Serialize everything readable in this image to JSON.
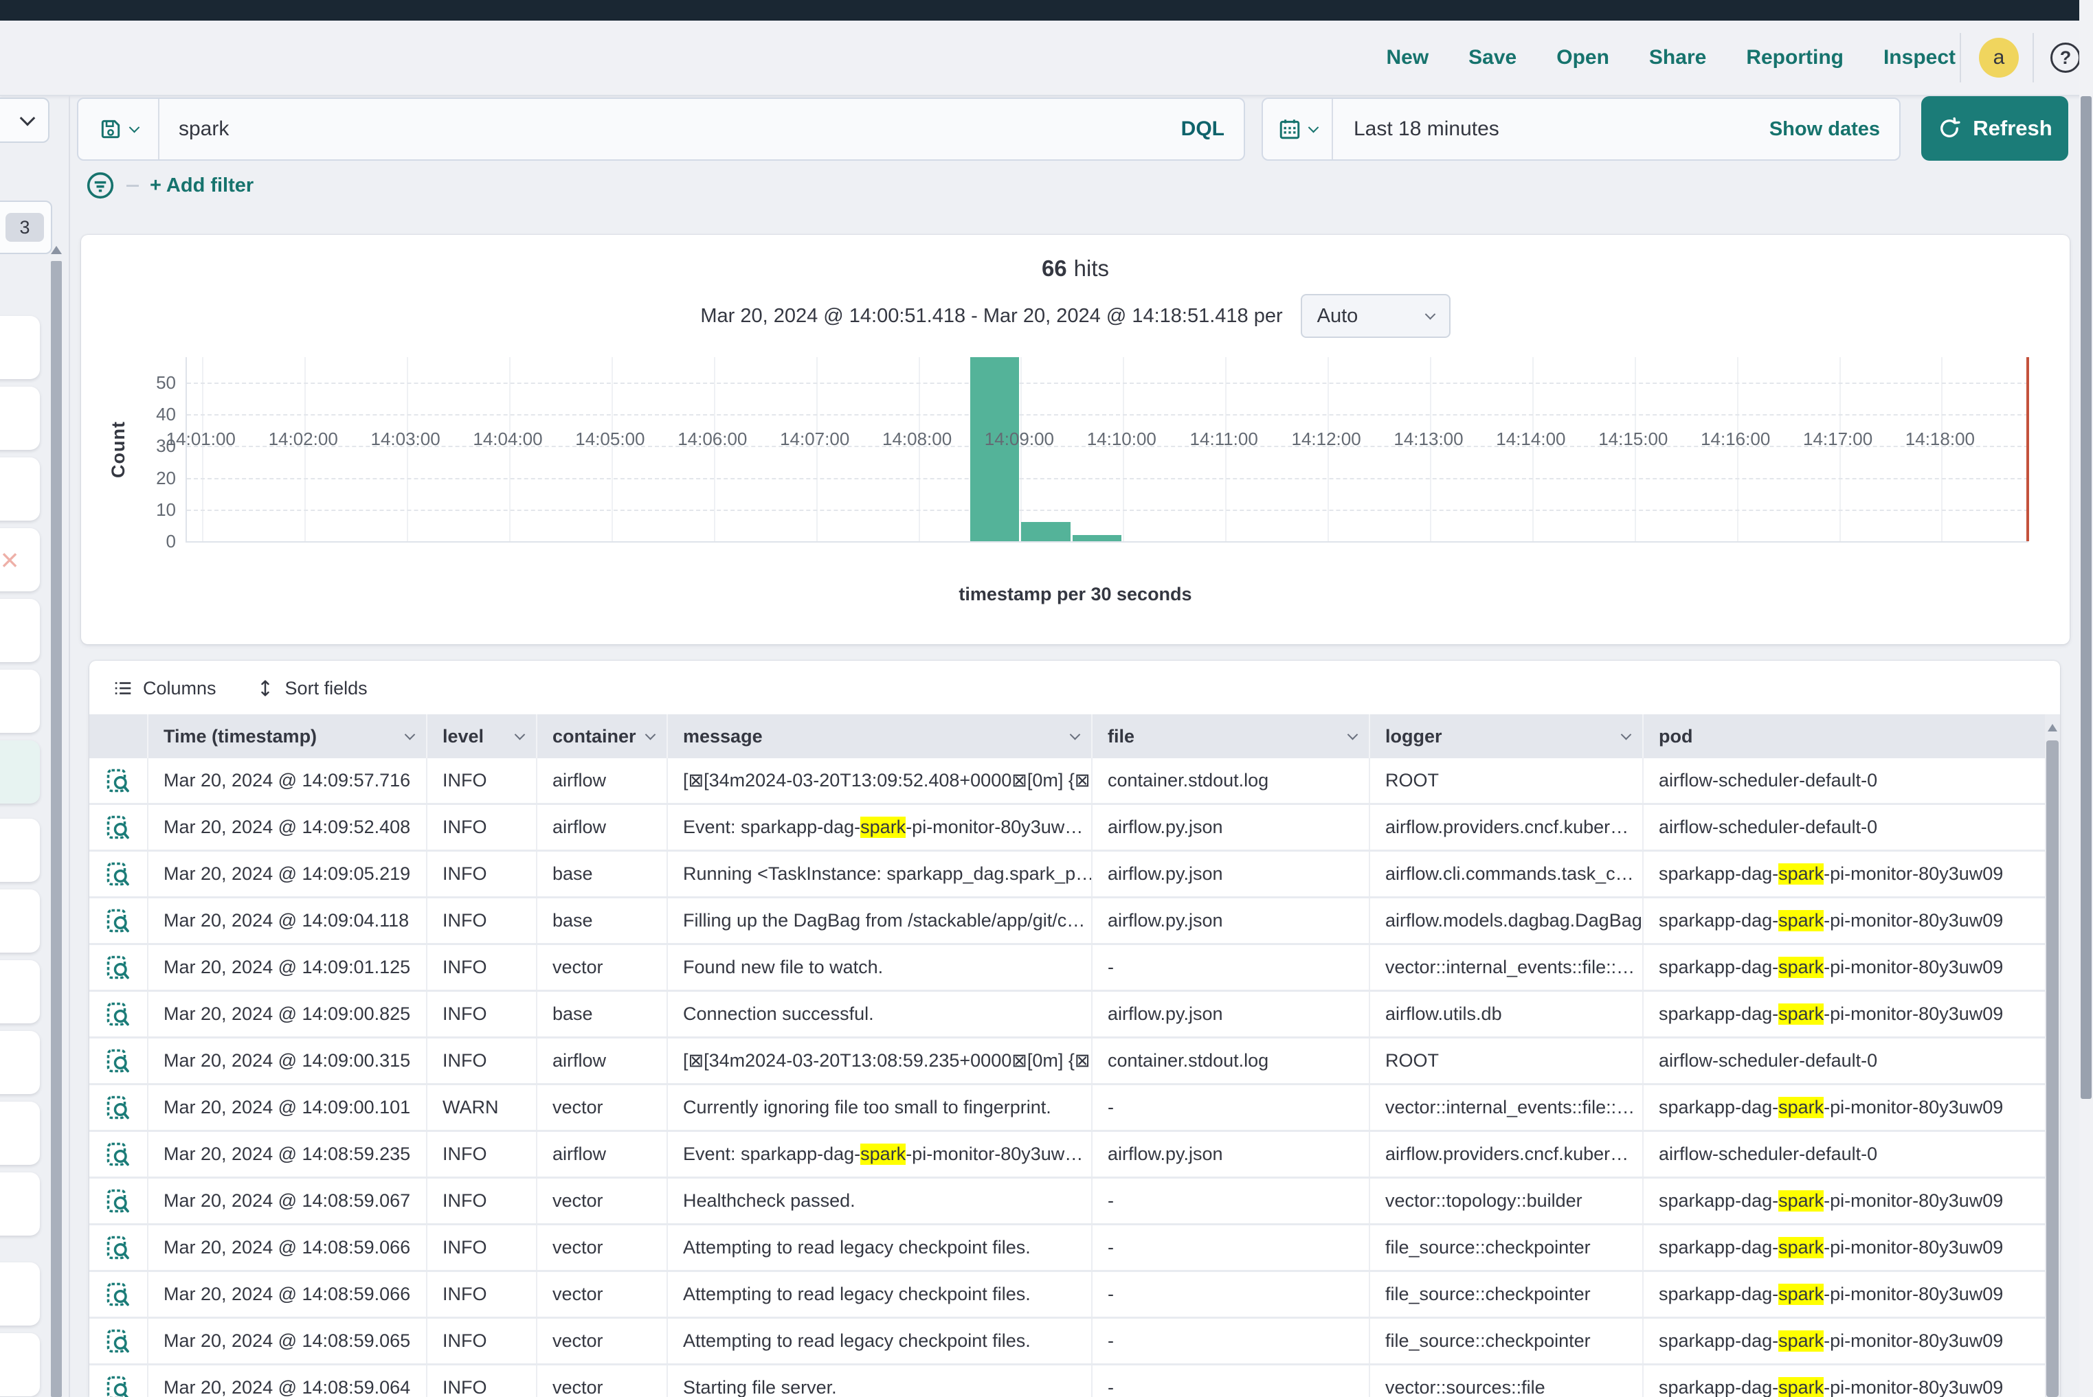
{
  "topnav": {
    "items": [
      {
        "key": "new",
        "label": "New"
      },
      {
        "key": "save",
        "label": "Save"
      },
      {
        "key": "open",
        "label": "Open"
      },
      {
        "key": "share",
        "label": "Share"
      },
      {
        "key": "reporting",
        "label": "Reporting"
      },
      {
        "key": "inspect",
        "label": "Inspect"
      }
    ],
    "avatar_initial": "a",
    "help_label": "?"
  },
  "querybar": {
    "query": "spark",
    "language_button": "DQL"
  },
  "timepicker": {
    "value": "Last 18 minutes",
    "show_dates_label": "Show dates",
    "refresh_label": "Refresh"
  },
  "filterbar": {
    "add_filter_label": "+ Add filter"
  },
  "sidebar": {
    "collapsed_badge": "3"
  },
  "chart": {
    "hits_count": "66",
    "hits_label": "hits",
    "range_text": "Mar 20, 2024 @ 14:00:51.418 - Mar 20, 2024 @ 14:18:51.418 per",
    "interval_value": "Auto",
    "ylabel": "Count",
    "xlabel": "timestamp per 30 seconds"
  },
  "chart_data": {
    "type": "bar",
    "title": "66 hits",
    "xlabel": "timestamp per 30 seconds",
    "ylabel": "Count",
    "interval": "30 seconds",
    "x_domain": [
      "14:00:51",
      "14:18:51"
    ],
    "x_ticks": [
      "14:01:00",
      "14:02:00",
      "14:03:00",
      "14:04:00",
      "14:05:00",
      "14:06:00",
      "14:07:00",
      "14:08:00",
      "14:09:00",
      "14:10:00",
      "14:11:00",
      "14:12:00",
      "14:13:00",
      "14:14:00",
      "14:15:00",
      "14:16:00",
      "14:17:00",
      "14:18:00"
    ],
    "y_ticks": [
      0,
      10,
      20,
      30,
      40,
      50
    ],
    "ylim": [
      0,
      58
    ],
    "grid": true,
    "bar_color": "#54b399",
    "bars": [
      {
        "x_start": "14:08:30",
        "x_end": "14:09:00",
        "count": 58
      },
      {
        "x_start": "14:09:00",
        "x_end": "14:09:30",
        "count": 6
      },
      {
        "x_start": "14:09:30",
        "x_end": "14:10:00",
        "count": 2
      }
    ],
    "current_time_marker": {
      "x": "14:18:51",
      "color": "#c4523c"
    }
  },
  "table": {
    "columns_button": "Columns",
    "sort_button": "Sort fields",
    "headers": [
      {
        "label": "Time (timestamp)",
        "sortable": true
      },
      {
        "label": "level",
        "sortable": true
      },
      {
        "label": "container",
        "sortable": true
      },
      {
        "label": "message",
        "sortable": true
      },
      {
        "label": "file",
        "sortable": true
      },
      {
        "label": "logger",
        "sortable": true
      },
      {
        "label": "pod",
        "sortable": false
      }
    ],
    "highlight_term": "spark",
    "rows": [
      {
        "time": "Mar 20, 2024 @ 14:09:57.716",
        "level": "INFO",
        "container": "airflow",
        "message": "[⊠[34m2024-03-20T13:09:52.408+0000⊠[0m] {⊠…",
        "file": "container.stdout.log",
        "logger": "ROOT",
        "pod": "airflow-scheduler-default-0"
      },
      {
        "time": "Mar 20, 2024 @ 14:09:52.408",
        "level": "INFO",
        "container": "airflow",
        "message": "Event: sparkapp-dag-[[spark]]-pi-monitor-80y3uw…",
        "file": "airflow.py.json",
        "logger": "airflow.providers.cncf.kuber…",
        "pod": "airflow-scheduler-default-0"
      },
      {
        "time": "Mar 20, 2024 @ 14:09:05.219",
        "level": "INFO",
        "container": "base",
        "message": "Running <TaskInstance: sparkapp_dag.spark_p…",
        "file": "airflow.py.json",
        "logger": "airflow.cli.commands.task_c…",
        "pod": "sparkapp-dag-[[spark]]-pi-monitor-80y3uw09"
      },
      {
        "time": "Mar 20, 2024 @ 14:09:04.118",
        "level": "INFO",
        "container": "base",
        "message": "Filling up the DagBag from /stackable/app/git/c…",
        "file": "airflow.py.json",
        "logger": "airflow.models.dagbag.DagBag",
        "pod": "sparkapp-dag-[[spark]]-pi-monitor-80y3uw09"
      },
      {
        "time": "Mar 20, 2024 @ 14:09:01.125",
        "level": "INFO",
        "container": "vector",
        "message": "Found new file to watch.",
        "file": "-",
        "logger": "vector::internal_events::file::…",
        "pod": "sparkapp-dag-[[spark]]-pi-monitor-80y3uw09"
      },
      {
        "time": "Mar 20, 2024 @ 14:09:00.825",
        "level": "INFO",
        "container": "base",
        "message": "Connection successful.",
        "file": "airflow.py.json",
        "logger": "airflow.utils.db",
        "pod": "sparkapp-dag-[[spark]]-pi-monitor-80y3uw09"
      },
      {
        "time": "Mar 20, 2024 @ 14:09:00.315",
        "level": "INFO",
        "container": "airflow",
        "message": "[⊠[34m2024-03-20T13:08:59.235+0000⊠[0m] {⊠…",
        "file": "container.stdout.log",
        "logger": "ROOT",
        "pod": "airflow-scheduler-default-0"
      },
      {
        "time": "Mar 20, 2024 @ 14:09:00.101",
        "level": "WARN",
        "container": "vector",
        "message": "Currently ignoring file too small to fingerprint.",
        "file": "-",
        "logger": "vector::internal_events::file::…",
        "pod": "sparkapp-dag-[[spark]]-pi-monitor-80y3uw09"
      },
      {
        "time": "Mar 20, 2024 @ 14:08:59.235",
        "level": "INFO",
        "container": "airflow",
        "message": "Event: sparkapp-dag-[[spark]]-pi-monitor-80y3uw…",
        "file": "airflow.py.json",
        "logger": "airflow.providers.cncf.kuber…",
        "pod": "airflow-scheduler-default-0"
      },
      {
        "time": "Mar 20, 2024 @ 14:08:59.067",
        "level": "INFO",
        "container": "vector",
        "message": "Healthcheck passed.",
        "file": "-",
        "logger": "vector::topology::builder",
        "pod": "sparkapp-dag-[[spark]]-pi-monitor-80y3uw09"
      },
      {
        "time": "Mar 20, 2024 @ 14:08:59.066",
        "level": "INFO",
        "container": "vector",
        "message": "Attempting to read legacy checkpoint files.",
        "file": "-",
        "logger": "file_source::checkpointer",
        "pod": "sparkapp-dag-[[spark]]-pi-monitor-80y3uw09"
      },
      {
        "time": "Mar 20, 2024 @ 14:08:59.066",
        "level": "INFO",
        "container": "vector",
        "message": "Attempting to read legacy checkpoint files.",
        "file": "-",
        "logger": "file_source::checkpointer",
        "pod": "sparkapp-dag-[[spark]]-pi-monitor-80y3uw09"
      },
      {
        "time": "Mar 20, 2024 @ 14:08:59.065",
        "level": "INFO",
        "container": "vector",
        "message": "Attempting to read legacy checkpoint files.",
        "file": "-",
        "logger": "file_source::checkpointer",
        "pod": "sparkapp-dag-[[spark]]-pi-monitor-80y3uw09"
      },
      {
        "time": "Mar 20, 2024 @ 14:08:59.064",
        "level": "INFO",
        "container": "vector",
        "message": "Starting file server.",
        "file": "-",
        "logger": "vector::sources::file",
        "pod": "sparkapp-dag-[[spark]]-pi-monitor-80y3uw09"
      }
    ]
  }
}
